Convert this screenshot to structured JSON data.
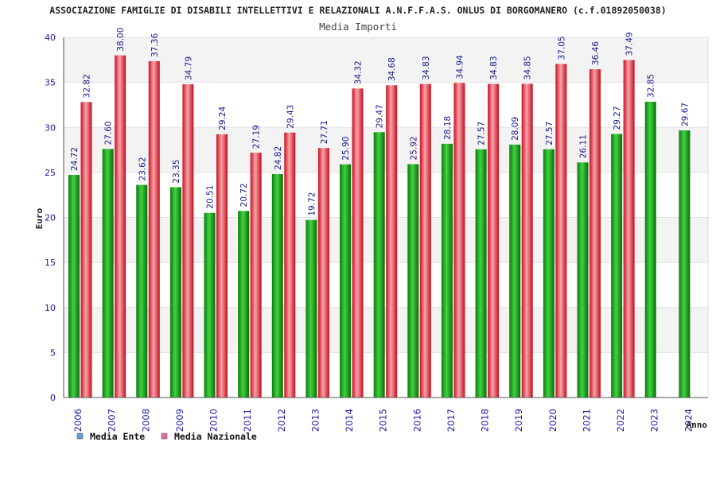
{
  "chart_data": {
    "type": "bar",
    "title": "ASSOCIAZIONE FAMIGLIE DI DISABILI INTELLETTIVI E RELAZIONALI A.N.F.F.A.S. ONLUS DI BORGOMANERO (c.f.01892050038)",
    "subtitle": "Media Importi",
    "xlabel": "Anno",
    "ylabel": "Euro",
    "ylim": [
      0,
      40
    ],
    "yticks": [
      "0",
      "5",
      "10",
      "15",
      "20",
      "25",
      "30",
      "35",
      "40"
    ],
    "categories": [
      "2006",
      "2007",
      "2008",
      "2009",
      "2010",
      "2011",
      "2012",
      "2013",
      "2014",
      "2015",
      "2016",
      "2017",
      "2018",
      "2019",
      "2020",
      "2021",
      "2022",
      "2023",
      "2024"
    ],
    "series": [
      {
        "name": "Media Ente",
        "color": "#22aa22",
        "values": [
          24.72,
          27.6,
          23.62,
          23.35,
          20.51,
          20.72,
          24.82,
          19.72,
          25.9,
          29.47,
          25.92,
          28.18,
          27.57,
          28.09,
          27.57,
          26.11,
          29.27,
          32.85,
          29.67
        ],
        "labels": [
          "24.72",
          "27.60",
          "23.62",
          "23.35",
          "20.51",
          "20.72",
          "24.82",
          "19.72",
          "25.90",
          "29.47",
          "25.92",
          "28.18",
          "27.57",
          "28.09",
          "27.57",
          "26.11",
          "29.27",
          "32.85",
          "29.67"
        ]
      },
      {
        "name": "Media Nazionale",
        "color": "#ee3344",
        "values": [
          32.82,
          38.0,
          37.36,
          34.79,
          29.24,
          27.19,
          29.43,
          27.71,
          34.32,
          34.68,
          34.83,
          34.94,
          34.83,
          34.85,
          37.05,
          36.46,
          37.49,
          null,
          null
        ],
        "labels": [
          "32.82",
          "38.00",
          "37.36",
          "34.79",
          "29.24",
          "27.19",
          "29.43",
          "27.71",
          "34.32",
          "34.68",
          "34.83",
          "34.94",
          "34.83",
          "34.85",
          "37.05",
          "36.46",
          "37.49",
          "",
          ""
        ]
      }
    ],
    "legend": [
      {
        "label": "Media Ente",
        "color": "#5b9bd5"
      },
      {
        "label": "Media Nazionale",
        "color": "#e06aa8"
      }
    ],
    "legend_position": "bottom-left",
    "grid": true
  }
}
